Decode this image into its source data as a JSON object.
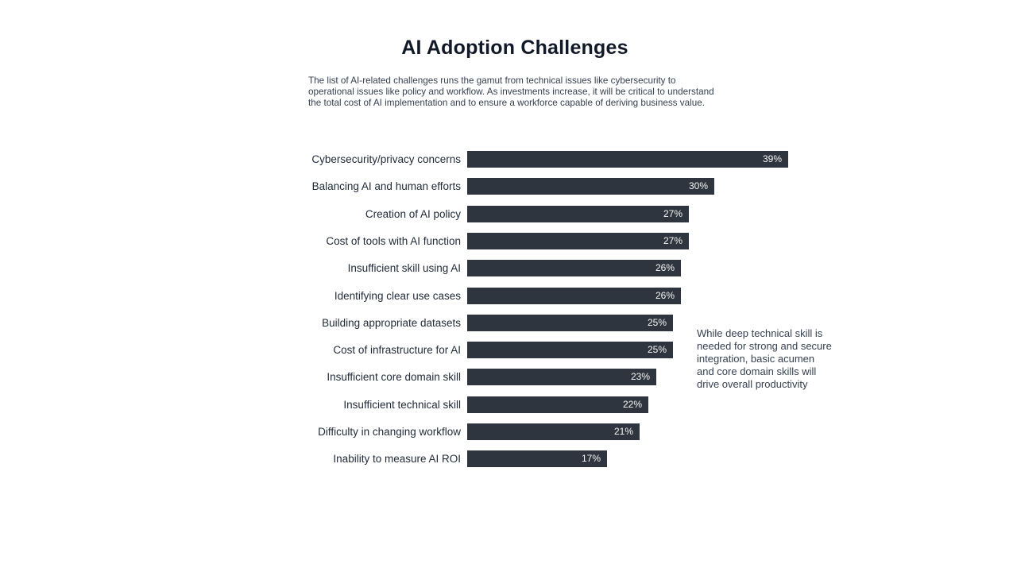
{
  "page": {
    "title": "AI Adoption Challenges",
    "subtitle": "The list of AI-related challenges runs the gamut from technical issues like cybersecurity to\noperational issues like policy and workflow. As investments increase, it will be critical to understand\nthe total cost of AI implementation and to ensure a workforce capable of deriving business value.",
    "annotation": "While deep technical skill is\nneeded for strong and secure\nintegration, basic acumen\nand core domain skills will\ndrive overall productivity"
  },
  "colors": {
    "background": "#ffffff",
    "bar": "#2e353e",
    "title_text": "#111827",
    "body_text": "#374151",
    "category_text": "#1f2937",
    "value_text": "#f5f6f7"
  },
  "chart_data": {
    "type": "bar",
    "orientation": "horizontal",
    "title": "AI Adoption Challenges",
    "subtitle": "The list of AI-related challenges runs the gamut from technical issues like cybersecurity to operational issues like policy and workflow. As investments increase, it will be critical to understand the total cost of AI implementation and to ensure a workforce capable of deriving business value.",
    "annotation": "While deep technical skill is needed for strong and secure integration, basic acumen and core domain skills will drive overall productivity",
    "unit": "%",
    "categories": [
      "Cybersecurity/privacy concerns",
      "Balancing AI and human efforts",
      "Creation of AI policy",
      "Cost of tools with AI function",
      "Insufficient skill using AI",
      "Identifying clear use cases",
      "Building appropriate datasets",
      "Cost of infrastructure for AI",
      "Insufficient core domain skill",
      "Insufficient technical skill",
      "Difficulty in changing workflow",
      "Inability to measure AI ROI"
    ],
    "values": [
      39,
      30,
      27,
      27,
      26,
      26,
      25,
      25,
      23,
      22,
      21,
      17
    ],
    "value_labels": [
      "39%",
      "30%",
      "27%",
      "27%",
      "26%",
      "26%",
      "25%",
      "25%",
      "23%",
      "22%",
      "21%",
      "17%"
    ],
    "xlim": [
      0,
      39
    ],
    "grid": false,
    "legend": false,
    "value_labels_position": "inside-end",
    "bar_color": "#2e353e"
  }
}
